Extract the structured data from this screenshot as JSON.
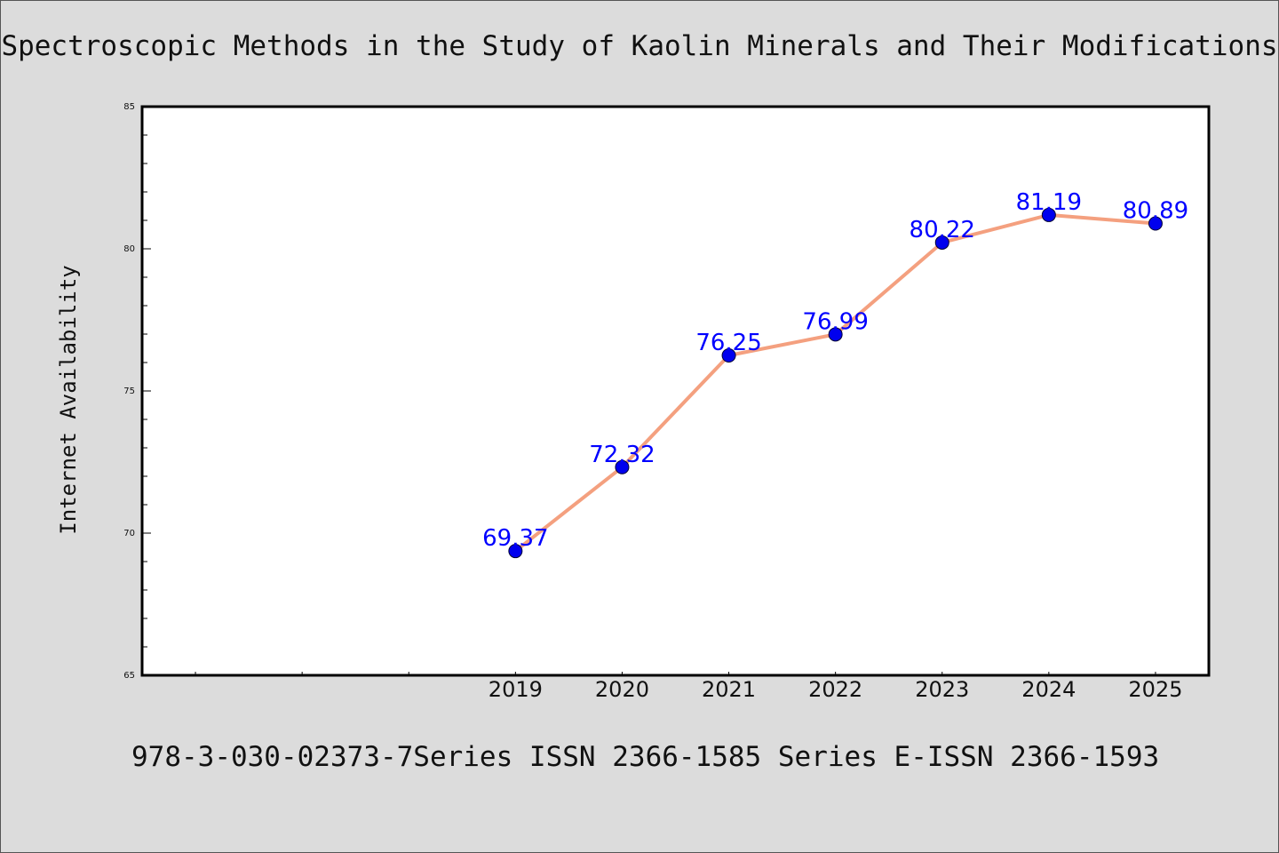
{
  "chart_data": {
    "type": "line",
    "title": "Spectroscopic Methods in the Study of Kaolin Minerals and Their Modifications",
    "ylabel": "Internet Availability",
    "xlabel": "",
    "x": [
      "2019",
      "2020",
      "2021",
      "2022",
      "2023",
      "2024",
      "2025"
    ],
    "x_axis_slots": 10,
    "x_first_slot": 3,
    "series": [
      {
        "values": [
          69.37,
          72.32,
          76.25,
          76.99,
          80.22,
          81.19,
          80.89
        ],
        "labels": [
          "69.37",
          "72.32",
          "76.25",
          "76.99",
          "80.22",
          "81.19",
          "80.89"
        ]
      }
    ],
    "ylim": [
      65,
      85
    ],
    "y_major_ticks": [
      65,
      70,
      75,
      80,
      85
    ],
    "y_tick_labels": [
      "65",
      "70",
      "75",
      "80",
      "85"
    ],
    "y_minor_step": 1,
    "grid": false,
    "legend": "none",
    "colors": {
      "line": "#f4a07f",
      "marker": "#0000ee",
      "marker_edge": "#000033",
      "data_label": "#0000ff",
      "background": "#dcdcdc",
      "plot_background": "#ffffff"
    }
  },
  "footer": {
    "text": "978-3-030-02373-7Series ISSN 2366-1585 Series E-ISSN 2366-1593"
  }
}
